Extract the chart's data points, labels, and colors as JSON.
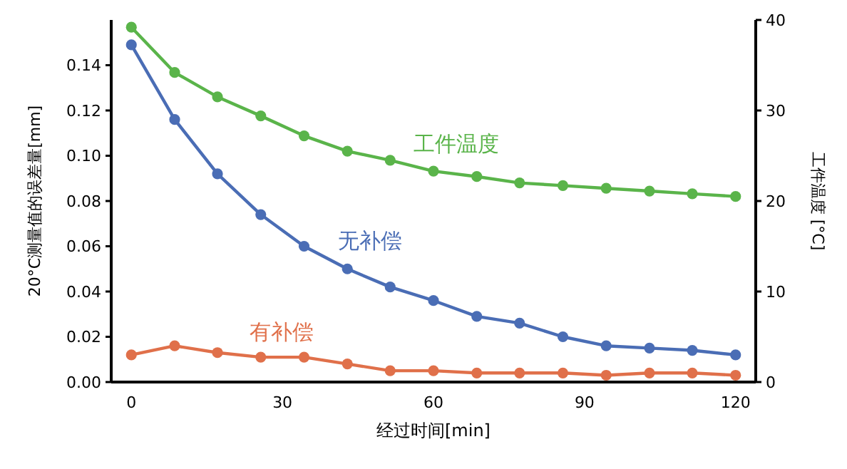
{
  "chart_data": {
    "type": "line",
    "xlabel": "经过时间[min]",
    "ylabel": "20°C测量值的误差量[mm]",
    "y2label": "工件温度 [°C]",
    "x": [
      0,
      8.6,
      17.1,
      25.7,
      34.3,
      42.9,
      51.4,
      60,
      68.6,
      77.1,
      85.7,
      94.3,
      102.9,
      111.4,
      120
    ],
    "xlim": [
      -4,
      124
    ],
    "xticks": [
      0,
      30,
      60,
      90,
      120
    ],
    "ylim": [
      0,
      0.16
    ],
    "yticks": [
      {
        "value": 0,
        "label": "0.00"
      },
      {
        "value": 0.02,
        "label": "0.02"
      },
      {
        "value": 0.04,
        "label": "0.04"
      },
      {
        "value": 0.06,
        "label": "0.06"
      },
      {
        "value": 0.08,
        "label": "0.08"
      },
      {
        "value": 0.1,
        "label": "0.10"
      },
      {
        "value": 0.12,
        "label": "0.12"
      },
      {
        "value": 0.14,
        "label": "0.14"
      }
    ],
    "y2lim": [
      0,
      40
    ],
    "y2ticks": [
      0,
      10,
      20,
      30,
      40
    ],
    "marker": "circle",
    "grid": false,
    "series": [
      {
        "name": "工件温度",
        "color": "#5ab44a",
        "axis": "y2",
        "values": [
          39.2,
          34.2,
          31.5,
          29.4,
          27.2,
          25.5,
          24.5,
          23.3,
          22.7,
          22.0,
          21.7,
          21.4,
          21.1,
          20.8,
          20.5
        ]
      },
      {
        "name": "无补偿",
        "color": "#4a6db5",
        "values": [
          0.149,
          0.116,
          0.092,
          0.074,
          0.06,
          0.05,
          0.042,
          0.036,
          0.029,
          0.026,
          0.02,
          0.016,
          0.015,
          0.014,
          0.012
        ]
      },
      {
        "name": "有补偿",
        "color": "#e0704a",
        "values": [
          0.012,
          0.016,
          0.013,
          0.011,
          0.011,
          0.008,
          0.005,
          0.005,
          0.004,
          0.004,
          0.004,
          0.003,
          0.004,
          0.004,
          0.003
        ]
      }
    ]
  }
}
